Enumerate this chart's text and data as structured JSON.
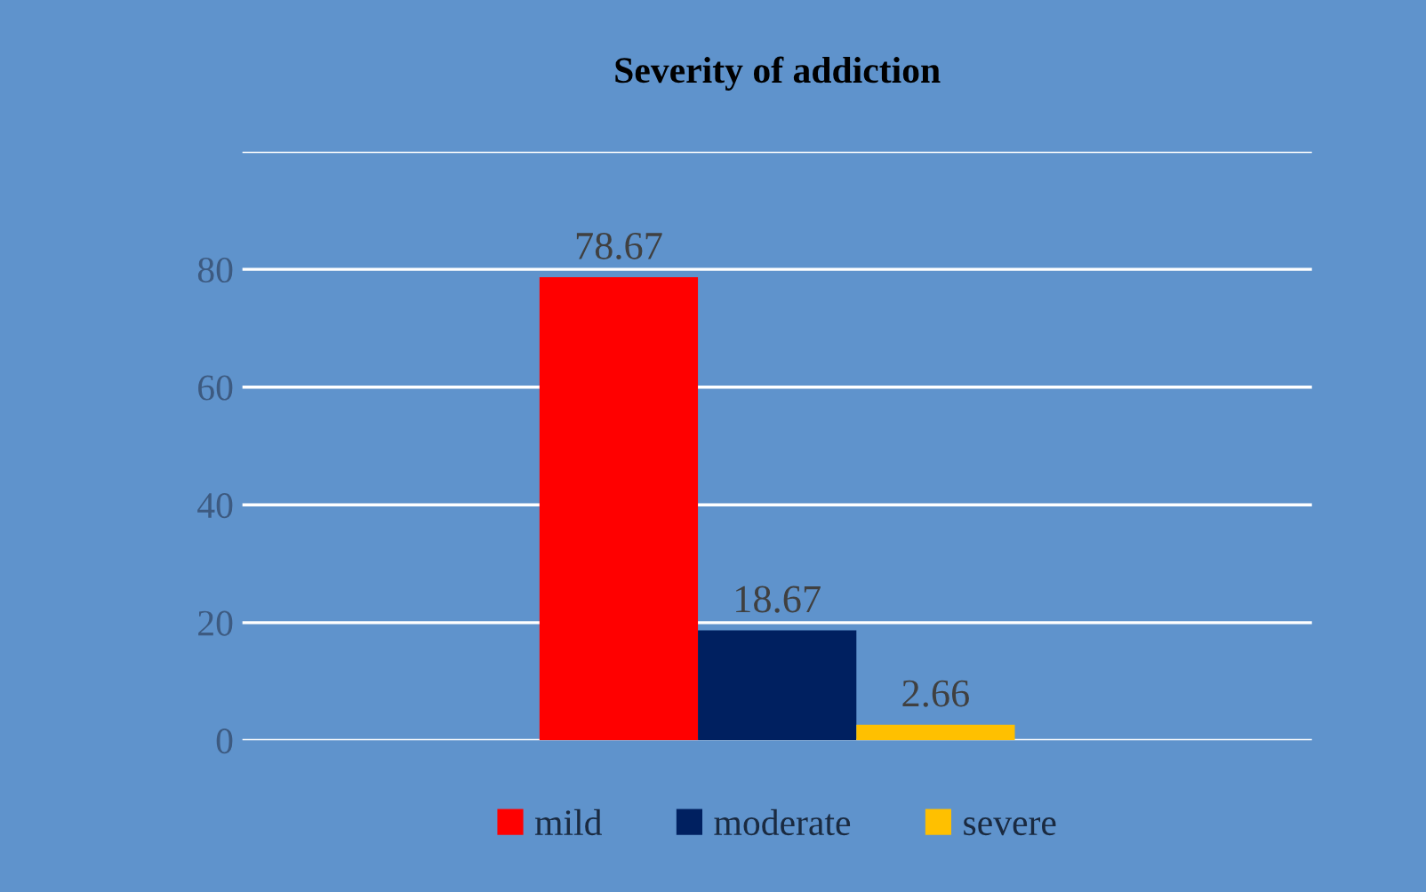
{
  "chart_data": {
    "type": "bar",
    "title": "Severity of addiction",
    "categories": [
      null
    ],
    "series": [
      {
        "name": "mild",
        "color": "#ff0000",
        "values": [
          78.67
        ]
      },
      {
        "name": "moderate",
        "color": "#002060",
        "values": [
          18.67
        ]
      },
      {
        "name": "severe",
        "color": "#ffc000",
        "values": [
          2.66
        ]
      }
    ],
    "data_labels": true,
    "ylim": [
      0,
      100
    ],
    "yticks": [
      0,
      20,
      40,
      60,
      80,
      {
        "value": 100,
        "label": null
      }
    ],
    "grid": "y",
    "legend": "bottom"
  }
}
